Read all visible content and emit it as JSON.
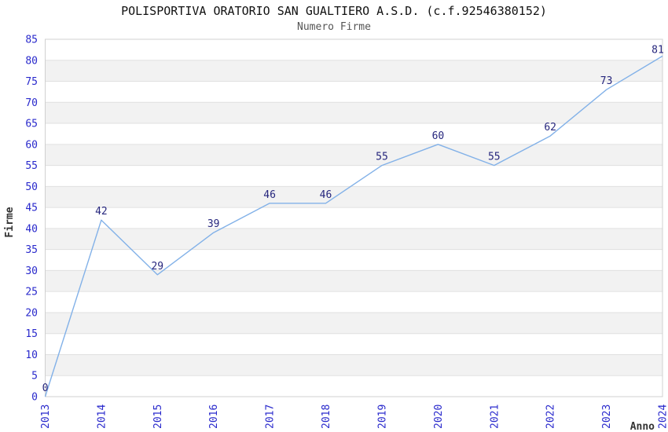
{
  "page": {
    "title": "POLISPORTIVA ORATORIO SAN GUALTIERO A.S.D. (c.f.92546380152)",
    "subtitle": "Numero Firme"
  },
  "axes": {
    "y_title": "Firme",
    "x_title": "Anno"
  },
  "colors": {
    "line": "#82B1E8",
    "tick_label": "#2929CC",
    "point_label": "#26267D",
    "title_text": "#111111",
    "subtitle_text": "#555555",
    "axis_title_text": "#333333",
    "gridline": "#E0E0E0",
    "band": "#F2F2F2",
    "plot_border": "#D0D0D0",
    "background": "#FFFFFF"
  },
  "chart_data": {
    "type": "line",
    "title": "POLISPORTIVA ORATORIO SAN GUALTIERO A.S.D. (c.f.92546380152)",
    "subtitle": "Numero Firme",
    "xlabel": "Anno",
    "ylabel": "Firme",
    "x": [
      2013,
      2014,
      2015,
      2016,
      2017,
      2018,
      2019,
      2020,
      2021,
      2022,
      2023,
      2024
    ],
    "values": [
      0,
      42,
      29,
      39,
      46,
      46,
      55,
      60,
      55,
      62,
      73,
      81
    ],
    "ylim": [
      0,
      85
    ],
    "ytick_step": 5,
    "xtick_rotation": -90,
    "grid": true,
    "banded_background": true,
    "legend": "none",
    "point_labels_shown": true
  }
}
